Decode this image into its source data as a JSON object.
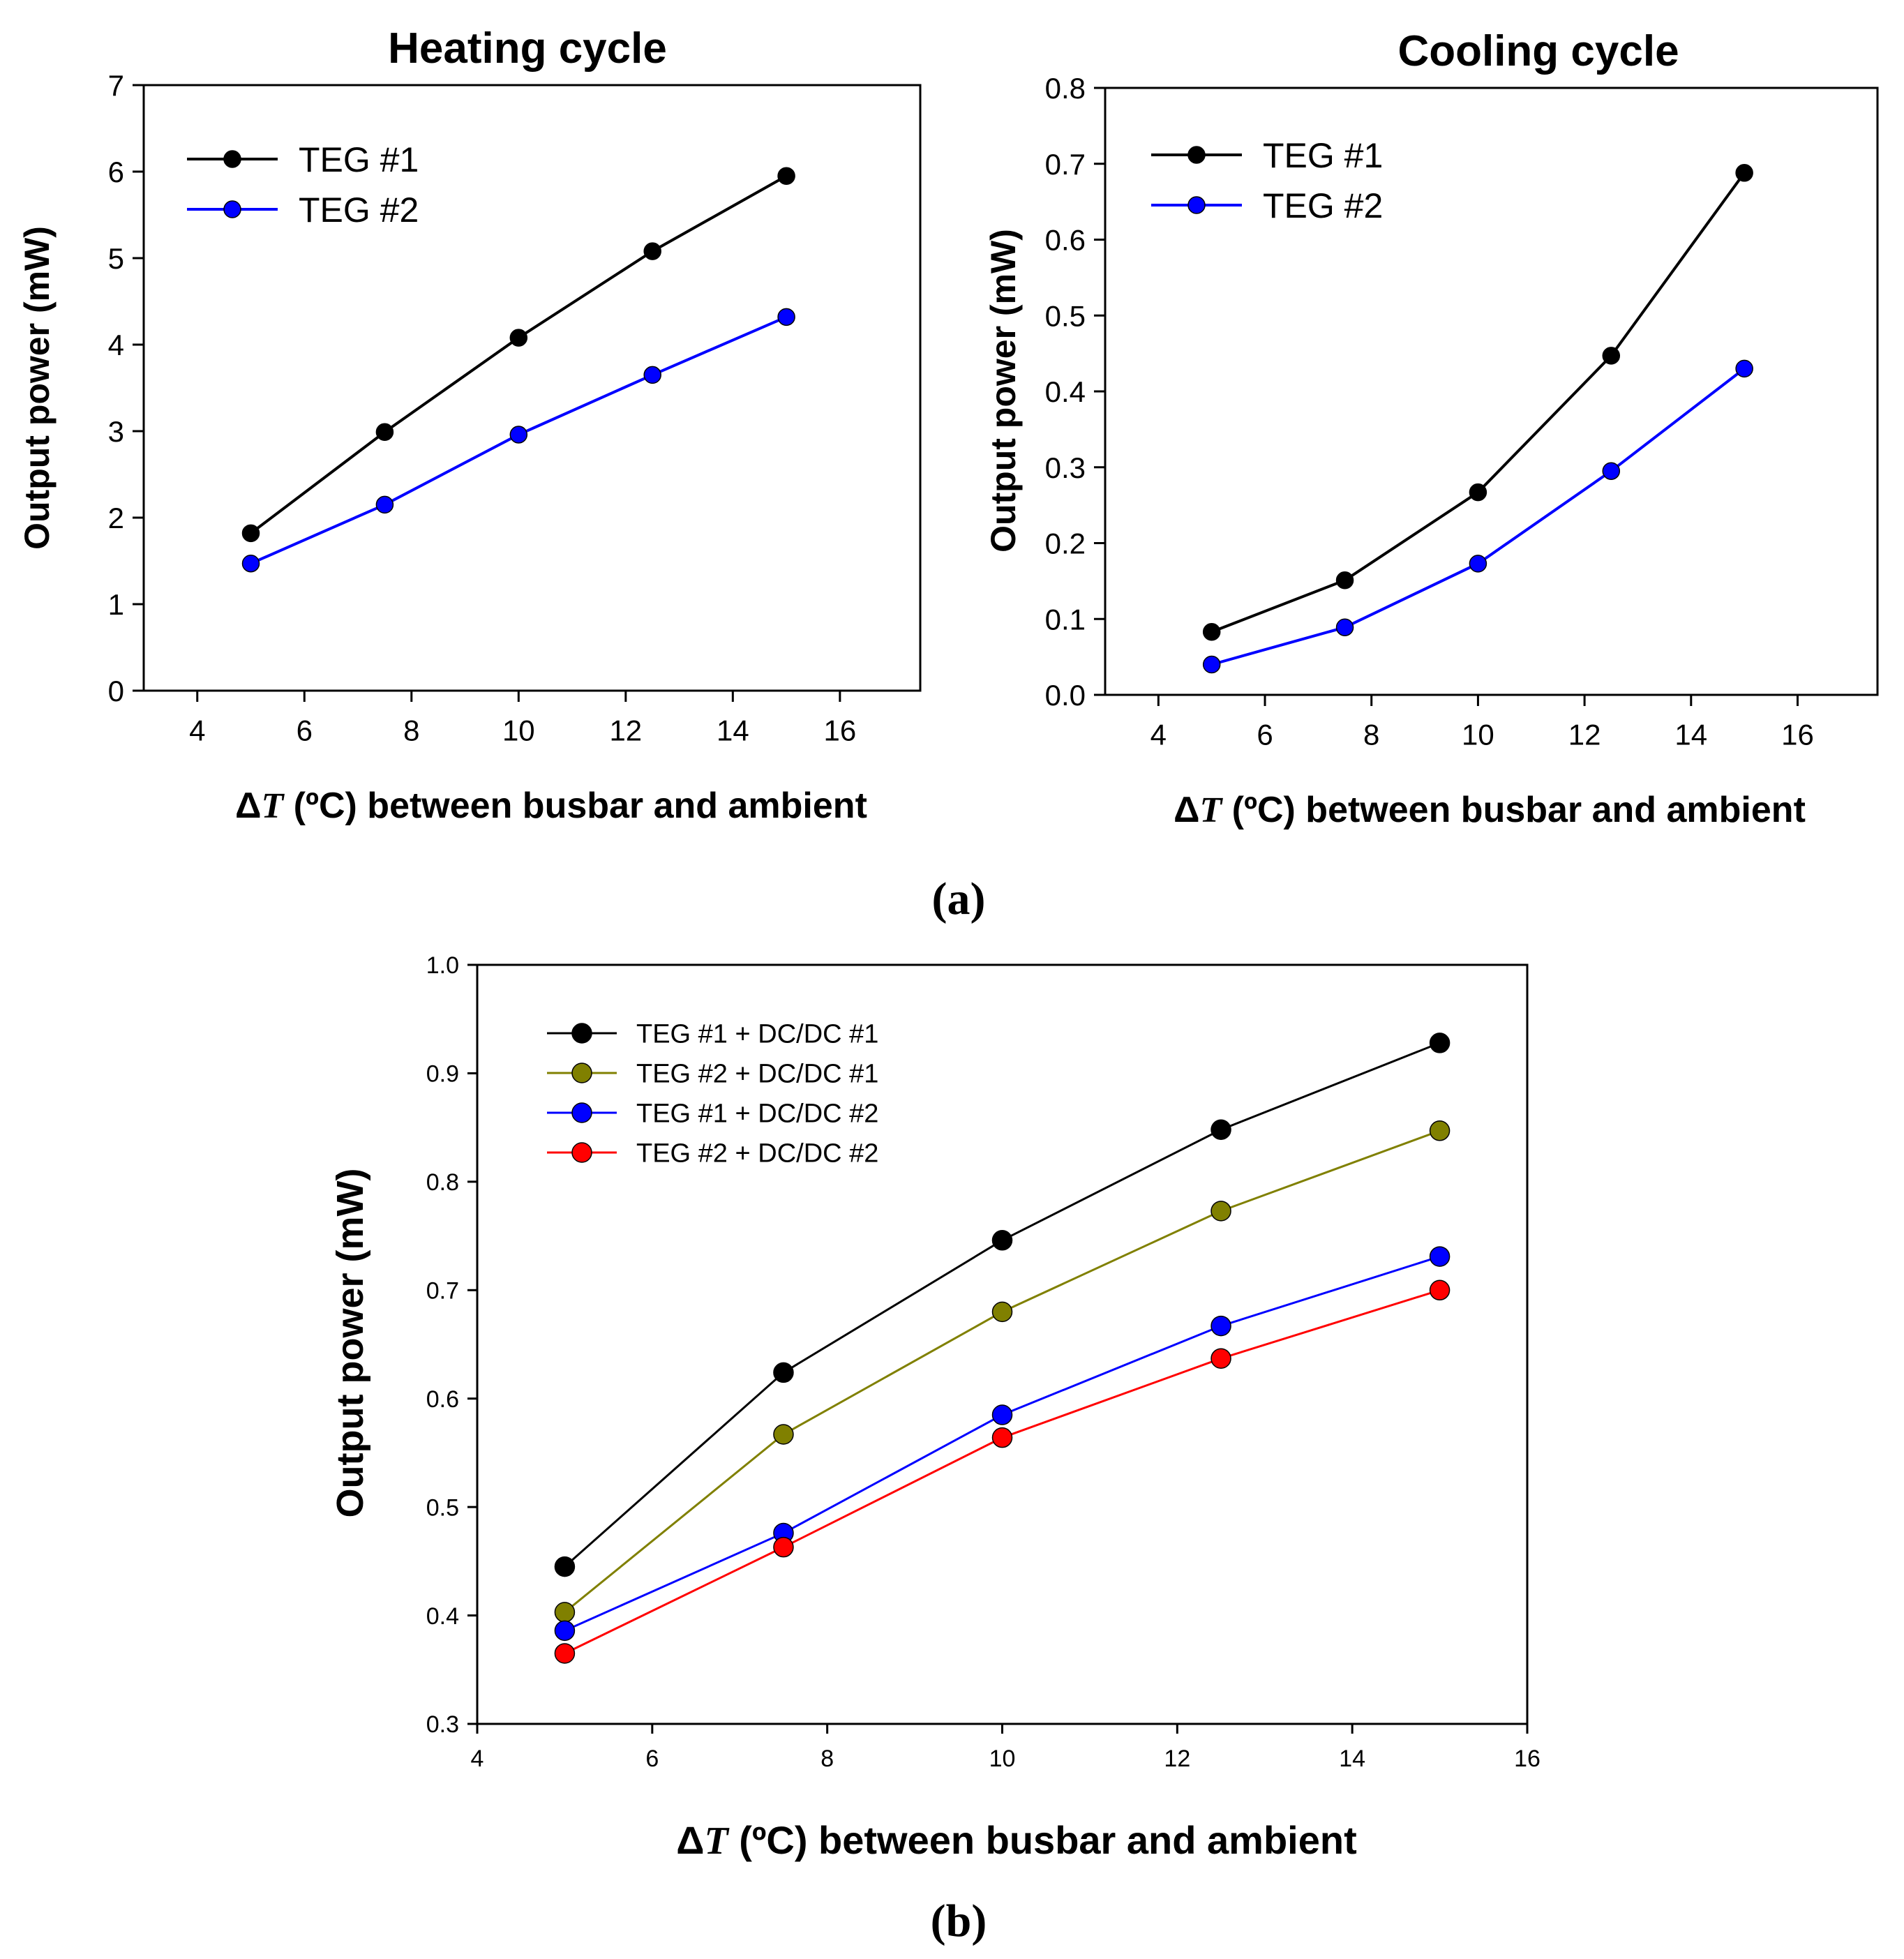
{
  "figure": {
    "panel_labels": [
      "(a)",
      "(b)"
    ]
  },
  "chart_data": [
    {
      "id": "heating",
      "type": "line",
      "title": "Heating cycle",
      "xlabel_delta": "Δ",
      "xlabel_var": "T",
      "xlabel_rest": " (ºC) between busbar and ambient",
      "ylabel": "Output power (mW)",
      "xlim": [
        3,
        17.5
      ],
      "ylim": [
        0,
        7
      ],
      "xticks": [
        4,
        6,
        8,
        10,
        12,
        14,
        16
      ],
      "yticks": [
        0,
        1,
        2,
        3,
        4,
        5,
        6,
        7
      ],
      "ytick_decimals": 0,
      "legend_position": "top-left",
      "x": [
        5,
        7.5,
        10,
        12.5,
        15
      ],
      "series": [
        {
          "name": "TEG #1",
          "color": "#000000",
          "values": [
            1.82,
            2.99,
            4.08,
            5.08,
            5.95
          ]
        },
        {
          "name": "TEG #2",
          "color": "#0000ff",
          "values": [
            1.47,
            2.15,
            2.96,
            3.65,
            4.32
          ]
        }
      ]
    },
    {
      "id": "cooling",
      "type": "line",
      "title": "Cooling cycle",
      "xlabel_delta": "Δ",
      "xlabel_var": "T",
      "xlabel_rest": " (ºC) between busbar and ambient",
      "ylabel": "Output power (mW)",
      "xlim": [
        3,
        17.5
      ],
      "ylim": [
        0,
        0.8
      ],
      "xticks": [
        4,
        6,
        8,
        10,
        12,
        14,
        16
      ],
      "yticks": [
        0,
        0.1,
        0.2,
        0.3,
        0.4,
        0.5,
        0.6,
        0.7,
        0.8
      ],
      "ytick_decimals": 1,
      "legend_position": "top-left",
      "x": [
        5,
        7.5,
        10,
        12.5,
        15
      ],
      "series": [
        {
          "name": "TEG #1",
          "color": "#000000",
          "values": [
            0.083,
            0.151,
            0.267,
            0.447,
            0.688
          ]
        },
        {
          "name": "TEG #2",
          "color": "#0000ff",
          "values": [
            0.04,
            0.089,
            0.173,
            0.295,
            0.43
          ]
        }
      ]
    },
    {
      "id": "dcdc",
      "type": "line",
      "title": "",
      "xlabel_delta": "Δ",
      "xlabel_var": "T",
      "xlabel_rest": " (ºC) between busbar and ambient",
      "ylabel": "Output power (mW)",
      "xlim": [
        4,
        16
      ],
      "ylim": [
        0.3,
        1.0
      ],
      "xticks": [
        4,
        6,
        8,
        10,
        12,
        14,
        16
      ],
      "yticks": [
        0.3,
        0.4,
        0.5,
        0.6,
        0.7,
        0.8,
        0.9,
        1.0
      ],
      "ytick_decimals": 1,
      "legend_position": "top-left",
      "x": [
        5,
        7.5,
        10,
        12.5,
        15
      ],
      "series": [
        {
          "name": "TEG #1 + DC/DC #1",
          "color": "#000000",
          "values": [
            0.445,
            0.624,
            0.746,
            0.848,
            0.928
          ]
        },
        {
          "name": "TEG #2 + DC/DC #1",
          "color": "#808000",
          "values": [
            0.403,
            0.567,
            0.68,
            0.773,
            0.847
          ]
        },
        {
          "name": "TEG #1 + DC/DC #2",
          "color": "#0000ff",
          "values": [
            0.386,
            0.476,
            0.585,
            0.667,
            0.731
          ]
        },
        {
          "name": "TEG #2 + DC/DC #2",
          "color": "#ff0000",
          "values": [
            0.365,
            0.463,
            0.564,
            0.637,
            0.7
          ]
        }
      ]
    }
  ]
}
